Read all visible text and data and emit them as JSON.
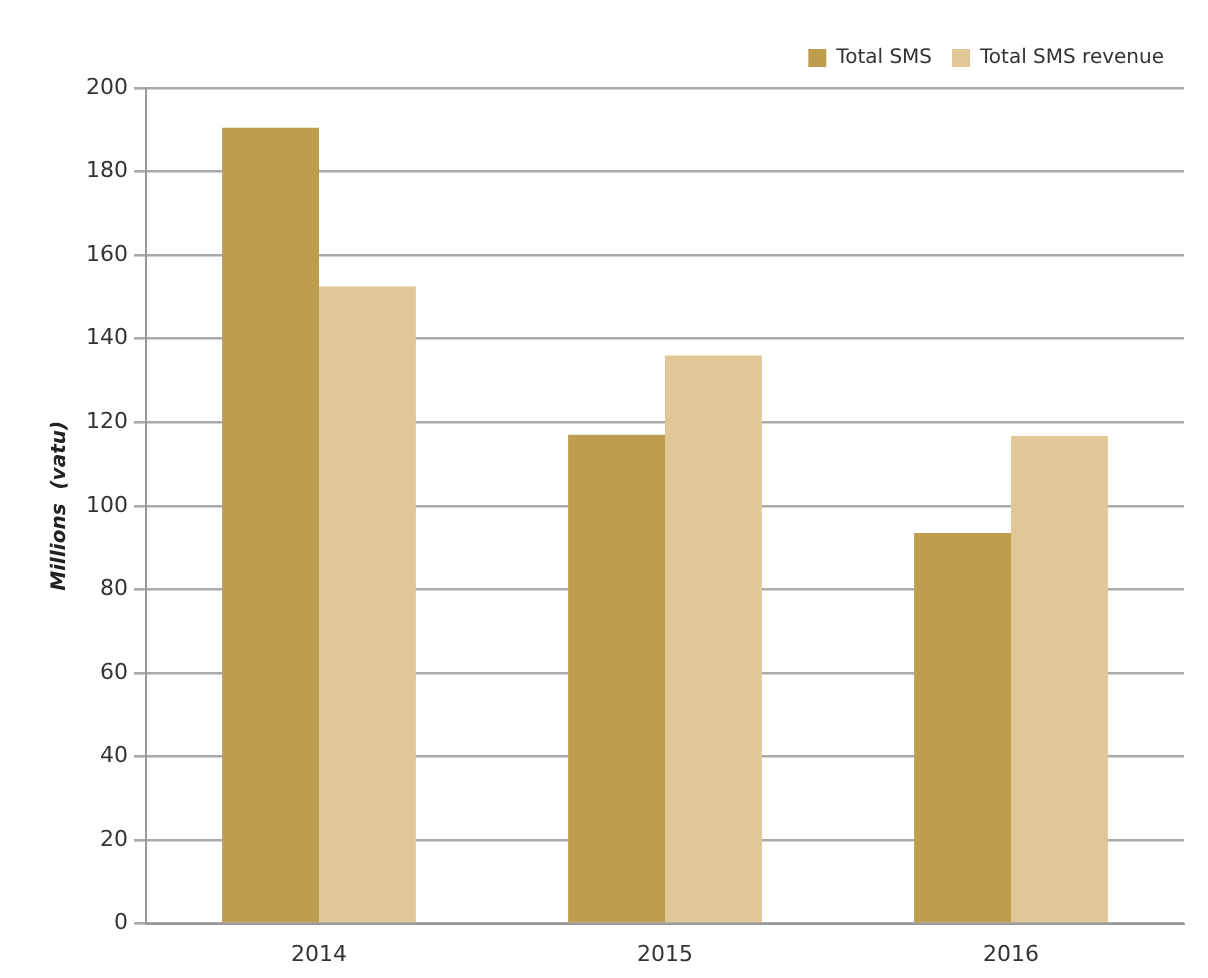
{
  "chart_data": {
    "type": "bar",
    "ylabel": "Millions  (vatu)",
    "categories": [
      "2014",
      "2015",
      "2016"
    ],
    "series": [
      {
        "name": "Total SMS",
        "color": "#bf9d4f",
        "values": [
          190.5,
          117,
          93.5
        ]
      },
      {
        "name": "Total SMS revenue",
        "color": "#e1c796",
        "values": [
          152.5,
          136,
          116.7
        ]
      }
    ],
    "ylim": [
      0,
      200
    ],
    "yticks": [
      0,
      20,
      40,
      60,
      80,
      100,
      120,
      140,
      160,
      180,
      200
    ],
    "grid": "y",
    "legend": "top right"
  }
}
